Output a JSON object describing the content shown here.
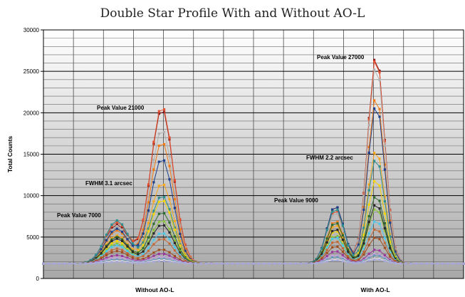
{
  "chart_data": {
    "type": "line",
    "title": "Double Star Profile With and Without AO-L",
    "xlabel": "",
    "ylabel": "Total Counts",
    "ylim": [
      0,
      30000
    ],
    "yticks": [
      "0",
      "5000",
      "10000",
      "15000",
      "20000",
      "25000",
      "30000"
    ],
    "xcategories": [
      "Without AO-L",
      "With AO-L"
    ],
    "grid": true,
    "legend": "none",
    "annotations": [
      {
        "text": "Peak Value 21000"
      },
      {
        "text": "FWHM 3.1 arcsec"
      },
      {
        "text": "Peak Value 7000"
      },
      {
        "text": "Peak Value 27000"
      },
      {
        "text": "FWHM 2.2 arcsec"
      },
      {
        "text": "Peak Value 9000"
      }
    ],
    "series_colors": [
      "#8b1a1a",
      "#e4502e",
      "#b0b0b0",
      "#f07a14",
      "#1e3f8a",
      "#f9a81c",
      "#2f8f8f",
      "#f5d400",
      "#2e6b2e",
      "#8ac43a",
      "#2a2a2a",
      "#4dc8e8",
      "#c06a3a",
      "#a05020",
      "#9a3a9a",
      "#c8a0e0",
      "#6a9ab8",
      "#e8e8e8",
      "#a8a8d8"
    ],
    "series_peaks": [
      {
        "a": 6500,
        "b": 20500,
        "c": 8800,
        "d": 27000
      },
      {
        "a": 6800,
        "b": 20800,
        "c": 8300,
        "d": 26800
      },
      {
        "a": 6300,
        "b": 18000,
        "c": 8000,
        "d": 25800
      },
      {
        "a": 5800,
        "b": 16500,
        "c": 7000,
        "d": 22000
      },
      {
        "a": 6000,
        "b": 14500,
        "c": 8800,
        "d": 21000
      },
      {
        "a": 5200,
        "b": 11500,
        "c": 6500,
        "d": 15500
      },
      {
        "a": 7000,
        "b": 10000,
        "c": 8500,
        "d": 14500
      },
      {
        "a": 4500,
        "b": 9500,
        "c": 5800,
        "d": 12000
      },
      {
        "a": 5000,
        "b": 8000,
        "c": 6800,
        "d": 10000
      },
      {
        "a": 4200,
        "b": 7000,
        "c": 5200,
        "d": 8500
      },
      {
        "a": 4800,
        "b": 6500,
        "c": 6000,
        "d": 9000
      },
      {
        "a": 4000,
        "b": 5500,
        "c": 5000,
        "d": 7000
      },
      {
        "a": 3600,
        "b": 4800,
        "c": 4500,
        "d": 6000
      },
      {
        "a": 3300,
        "b": 3500,
        "c": 3900,
        "d": 5000
      },
      {
        "a": 2800,
        "b": 3000,
        "c": 3300,
        "d": 3500
      },
      {
        "a": 2500,
        "b": 2600,
        "c": 2800,
        "d": 3000
      },
      {
        "a": 2300,
        "b": 2400,
        "c": 2600,
        "d": 2800
      },
      {
        "a": 2100,
        "b": 2200,
        "c": 2300,
        "d": 2400
      },
      {
        "a": 2000,
        "b": 2100,
        "c": 2200,
        "d": 2300
      }
    ],
    "baseline": 1800
  }
}
